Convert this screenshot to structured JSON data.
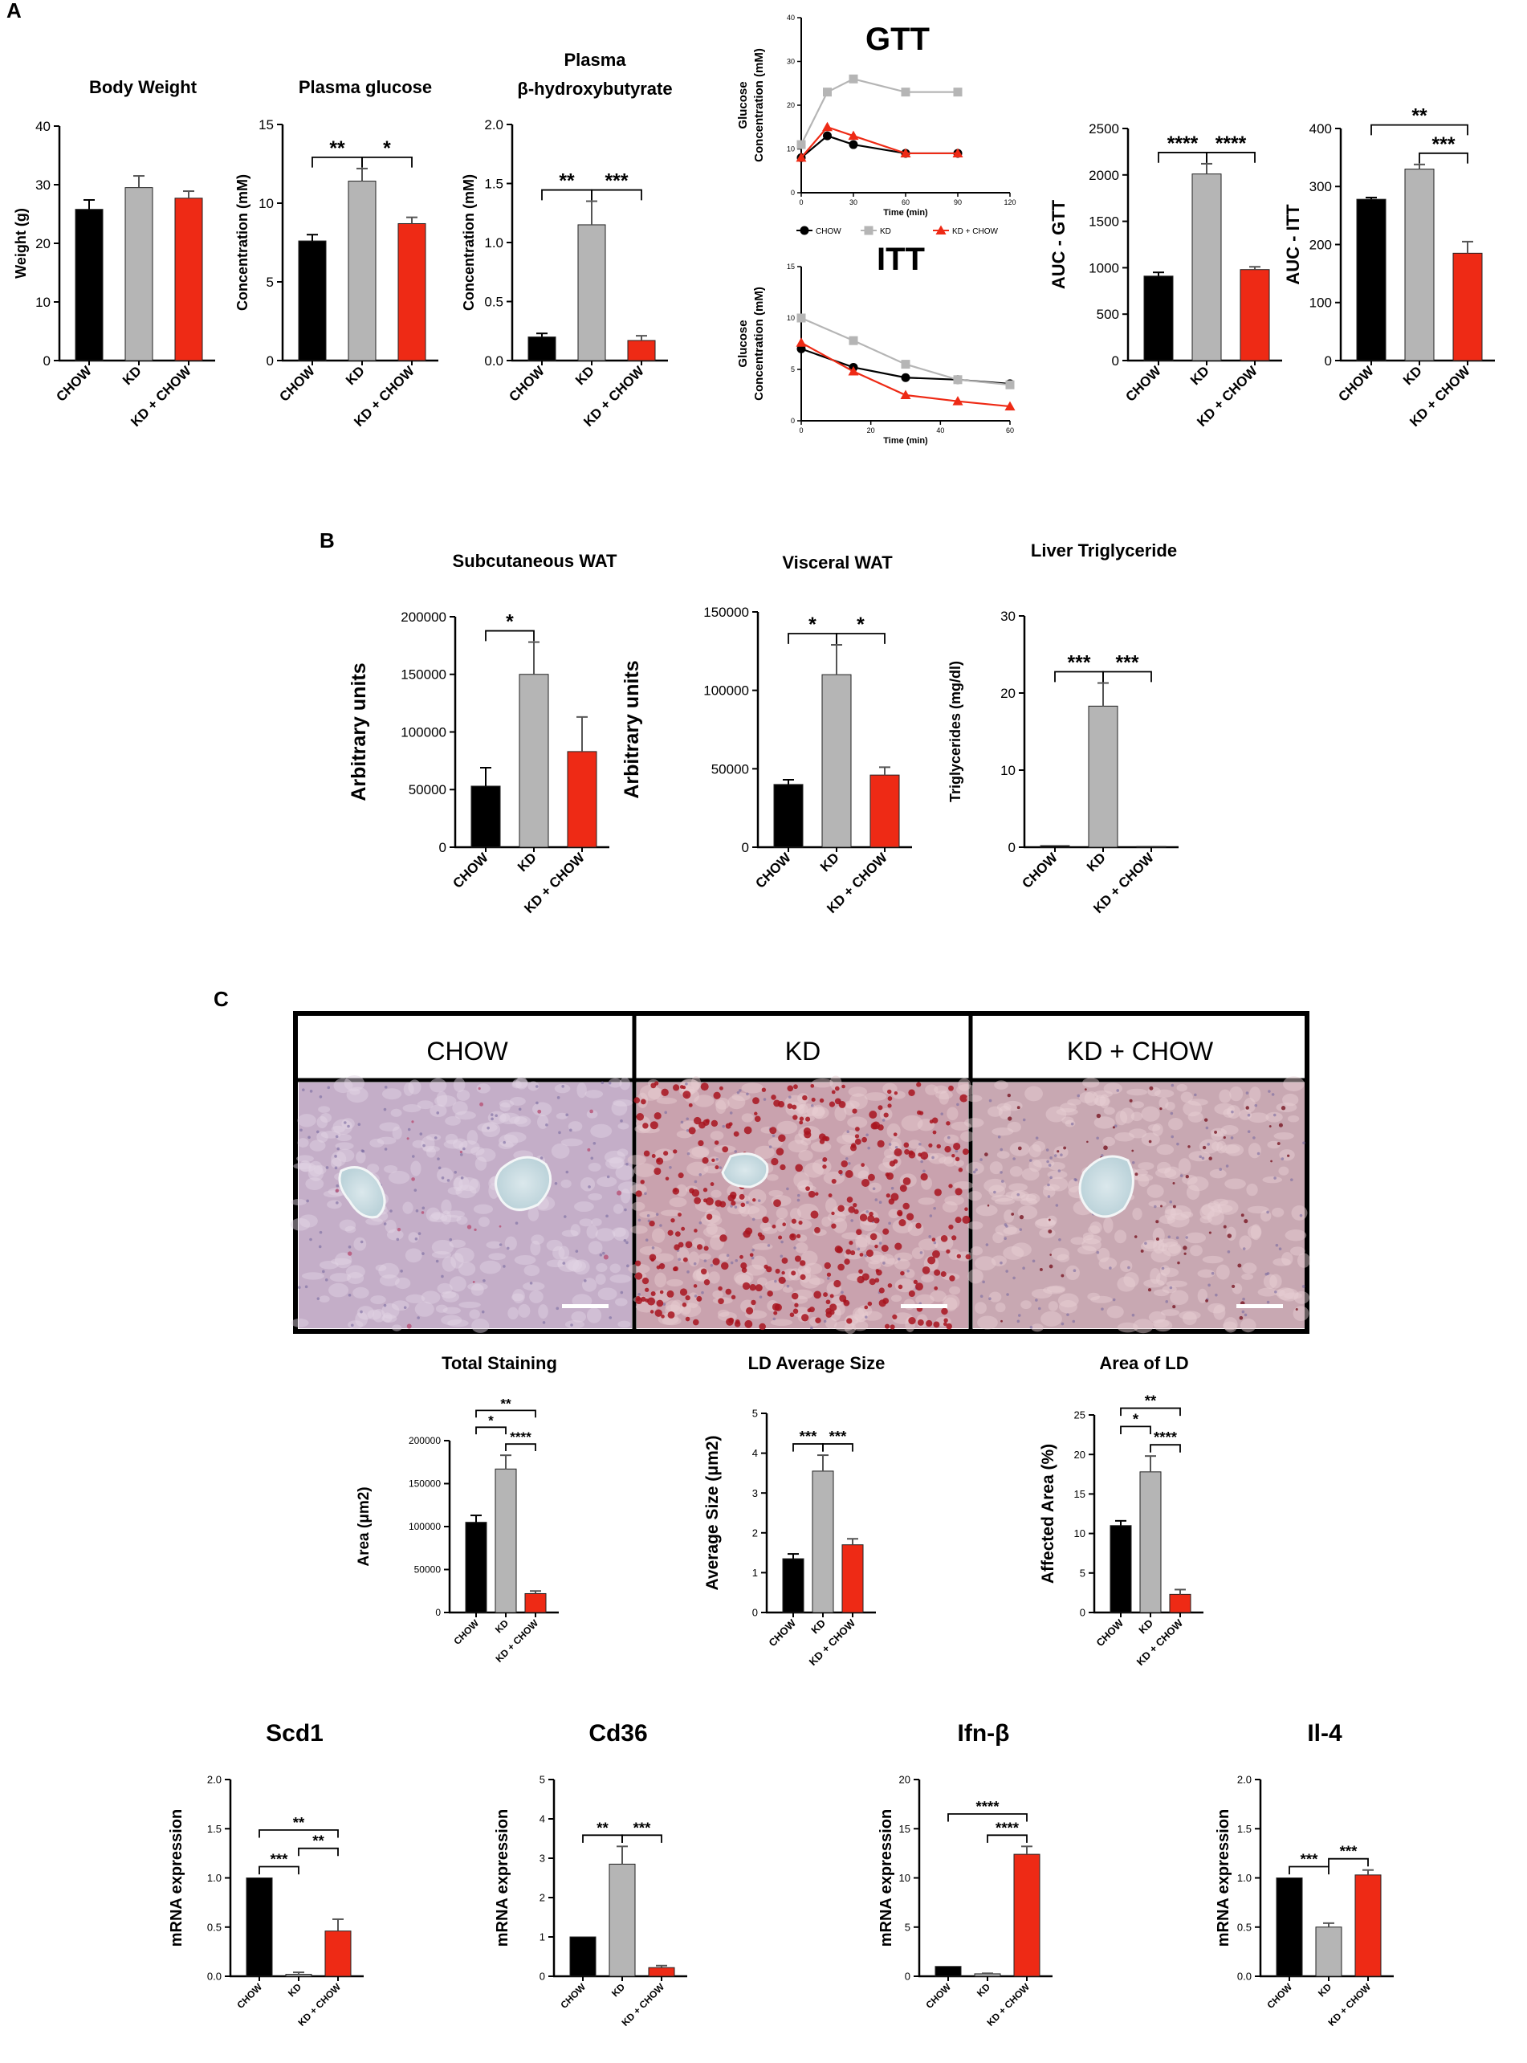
{
  "colors": {
    "chow": "#000000",
    "kd": "#b5b5b5",
    "kdchow": "#ee2a15",
    "axis": "#000000"
  },
  "panels": [
    {
      "id": "A",
      "label": "A"
    },
    {
      "id": "B",
      "label": "B"
    },
    {
      "id": "C",
      "label": "C"
    }
  ],
  "histology": {
    "labels": [
      "CHOW",
      "KD",
      "KD + CHOW"
    ]
  },
  "chart_data": [
    {
      "id": "body-weight",
      "type": "bar",
      "title": "Body Weight",
      "ylabel": "Weight (g)",
      "categories": [
        "CHOW",
        "KD",
        "KD + CHOW"
      ],
      "values": [
        25.8,
        29.5,
        27.7
      ],
      "errors": [
        1.6,
        2.0,
        1.2
      ],
      "ylim": [
        0,
        40
      ],
      "yticks": [
        "0",
        "10",
        "20",
        "30",
        "40"
      ],
      "sig": []
    },
    {
      "id": "plasma-glucose",
      "type": "bar",
      "title": "Plasma glucose",
      "ylabel": "Concentration (mM)",
      "categories": [
        "CHOW",
        "KD",
        "KD + CHOW"
      ],
      "values": [
        7.6,
        11.4,
        8.7
      ],
      "errors": [
        0.4,
        0.8,
        0.4
      ],
      "ylim": [
        0,
        15
      ],
      "yticks": [
        "0",
        "5",
        "10",
        "15"
      ],
      "sig": [
        {
          "from": 0,
          "to": 1,
          "label": "**"
        },
        {
          "from": 1,
          "to": 2,
          "label": "*"
        }
      ]
    },
    {
      "id": "plasma-bhb",
      "type": "bar",
      "title": "Plasma",
      "title2": "β-hydroxybutyrate",
      "ylabel": "Concentration (mM)",
      "categories": [
        "CHOW",
        "KD",
        "KD + CHOW"
      ],
      "values": [
        0.2,
        1.15,
        0.17
      ],
      "errors": [
        0.03,
        0.2,
        0.04
      ],
      "ylim": [
        0,
        2.0
      ],
      "yticks": [
        "0.0",
        "0.5",
        "1.0",
        "1.5",
        "2.0"
      ],
      "sig": [
        {
          "from": 0,
          "to": 1,
          "label": "**"
        },
        {
          "from": 1,
          "to": 2,
          "label": "***"
        }
      ]
    },
    {
      "id": "gtt",
      "type": "line",
      "title": "GTT",
      "ylabel": "Glucose",
      "ylabel2": "Concentration (mM)",
      "xlabel": "Time (min)",
      "x": [
        0,
        15,
        30,
        60,
        90
      ],
      "xlim": [
        0,
        120
      ],
      "xticks": [
        0,
        30,
        60,
        90,
        120
      ],
      "ylim": [
        0,
        40
      ],
      "yticks": [
        0,
        10,
        20,
        30,
        40
      ],
      "series": [
        {
          "name": "",
          "color": "chow",
          "marker": "circle",
          "values": [
            8,
            13,
            11,
            9,
            9
          ]
        },
        {
          "name": "",
          "color": "kd",
          "marker": "square",
          "values": [
            11,
            23,
            26,
            23,
            23
          ]
        },
        {
          "name": "",
          "color": "kdchow",
          "marker": "triangle",
          "values": [
            8,
            15,
            13,
            9,
            9
          ]
        }
      ]
    },
    {
      "id": "itt",
      "type": "line",
      "title": "ITT",
      "ylabel": "Glucose",
      "ylabel2": "Concentration (mM)",
      "xlabel": "Time (min)",
      "x": [
        0,
        15,
        30,
        45,
        60
      ],
      "xlim": [
        0,
        60
      ],
      "xticks": [
        0,
        20,
        40,
        60
      ],
      "ylim": [
        0,
        15
      ],
      "yticks": [
        0,
        5,
        10,
        15
      ],
      "legend": [
        "CHOW",
        "KD",
        "KD + CHOW"
      ],
      "series": [
        {
          "name": "CHOW",
          "color": "chow",
          "marker": "circle",
          "values": [
            7,
            5.2,
            4.2,
            4,
            3.6
          ]
        },
        {
          "name": "KD",
          "color": "kd",
          "marker": "square",
          "values": [
            10,
            7.8,
            5.5,
            4,
            3.5
          ]
        },
        {
          "name": "KD + CHOW",
          "color": "kdchow",
          "marker": "triangle",
          "values": [
            7.6,
            4.8,
            2.5,
            1.9,
            1.4
          ]
        }
      ]
    },
    {
      "id": "auc-gtt",
      "type": "bar",
      "title": "",
      "ylabel": "AUC - GTT",
      "categories": [
        "CHOW",
        "KD",
        "KD + CHOW"
      ],
      "values": [
        910,
        2010,
        980
      ],
      "errors": [
        40,
        110,
        30
      ],
      "ylim": [
        0,
        2500
      ],
      "yticks": [
        "0",
        "500",
        "1000",
        "1500",
        "2000",
        "2500"
      ],
      "sig": [
        {
          "from": 0,
          "to": 1,
          "label": "****"
        },
        {
          "from": 1,
          "to": 2,
          "label": "****"
        }
      ]
    },
    {
      "id": "auc-itt",
      "type": "bar",
      "title": "",
      "ylabel": "AUC - ITT",
      "categories": [
        "CHOW",
        "KD",
        "KD + CHOW"
      ],
      "values": [
        278,
        330,
        185
      ],
      "errors": [
        3,
        8,
        20
      ],
      "ylim": [
        0,
        400
      ],
      "yticks": [
        "0",
        "100",
        "200",
        "300",
        "400"
      ],
      "sig": [
        {
          "from": 0,
          "to": 2,
          "label": "**"
        },
        {
          "from": 1,
          "to": 2,
          "label": "***"
        }
      ]
    },
    {
      "id": "subcutaneous-wat",
      "type": "bar",
      "title": "Subcutaneous WAT",
      "ylabel": "Arbitrary units",
      "categories": [
        "CHOW",
        "KD",
        "KD + CHOW"
      ],
      "values": [
        53000,
        150000,
        83000
      ],
      "errors": [
        16000,
        28000,
        30000
      ],
      "ylim": [
        0,
        200000
      ],
      "yticks": [
        "0",
        "50000",
        "100000",
        "150000",
        "200000"
      ],
      "sig": [
        {
          "from": 0,
          "to": 1,
          "label": "*"
        }
      ]
    },
    {
      "id": "visceral-wat",
      "type": "bar",
      "title": "Visceral WAT",
      "ylabel": "Arbitrary units",
      "categories": [
        "CHOW",
        "KD",
        "KD + CHOW"
      ],
      "values": [
        40000,
        110000,
        46000
      ],
      "errors": [
        3000,
        19000,
        5000
      ],
      "ylim": [
        0,
        150000
      ],
      "yticks": [
        "0",
        "50000",
        "100000",
        "150000"
      ],
      "sig": [
        {
          "from": 0,
          "to": 1,
          "label": "*"
        },
        {
          "from": 1,
          "to": 2,
          "label": "*"
        }
      ]
    },
    {
      "id": "liver-triglyceride",
      "type": "bar",
      "title": "Liver Triglyceride",
      "ylabel": "Triglycerides (mg/dl)",
      "categories": [
        "CHOW",
        "KD",
        "KD + CHOW"
      ],
      "values": [
        0.2,
        18.3,
        0.1
      ],
      "errors": [
        0,
        3.0,
        0
      ],
      "ylim": [
        0,
        30
      ],
      "yticks": [
        "0",
        "10",
        "20",
        "30"
      ],
      "sig": [
        {
          "from": 0,
          "to": 1,
          "label": "***"
        },
        {
          "from": 1,
          "to": 2,
          "label": "***"
        }
      ]
    },
    {
      "id": "total-staining",
      "type": "bar",
      "title": "Total Staining",
      "ylabel": "Area (μm2)",
      "categories": [
        "CHOW",
        "KD",
        "KD + CHOW"
      ],
      "values": [
        105000,
        167000,
        22000
      ],
      "errors": [
        8000,
        16000,
        3000
      ],
      "ylim": [
        0,
        200000
      ],
      "yticks": [
        "0",
        "50000",
        "100000",
        "150000",
        "200000"
      ],
      "sig": [
        {
          "from": 0,
          "to": 2,
          "label": "**"
        },
        {
          "from": 0,
          "to": 1,
          "label": "*"
        },
        {
          "from": 1,
          "to": 2,
          "label": "****"
        }
      ]
    },
    {
      "id": "ld-average-size",
      "type": "bar",
      "title": "LD Average Size",
      "ylabel": "Average Size (μm2)",
      "categories": [
        "CHOW",
        "KD",
        "KD + CHOW"
      ],
      "values": [
        1.35,
        3.55,
        1.7
      ],
      "errors": [
        0.12,
        0.4,
        0.15
      ],
      "ylim": [
        0,
        5
      ],
      "yticks": [
        "0",
        "1",
        "2",
        "3",
        "4",
        "5"
      ],
      "sig": [
        {
          "from": 0,
          "to": 1,
          "label": "***"
        },
        {
          "from": 1,
          "to": 2,
          "label": "***"
        }
      ]
    },
    {
      "id": "area-of-ld",
      "type": "bar",
      "title": "Area of LD",
      "ylabel": "Affected Area (%)",
      "categories": [
        "CHOW",
        "KD",
        "KD + CHOW"
      ],
      "values": [
        11,
        17.8,
        2.3
      ],
      "errors": [
        0.6,
        2.0,
        0.6
      ],
      "ylim": [
        0,
        25
      ],
      "yticks": [
        "0",
        "5",
        "10",
        "15",
        "20",
        "25"
      ],
      "sig": [
        {
          "from": 0,
          "to": 2,
          "label": "**"
        },
        {
          "from": 0,
          "to": 1,
          "label": "*"
        },
        {
          "from": 1,
          "to": 2,
          "label": "****"
        }
      ]
    },
    {
      "id": "scd1",
      "type": "bar",
      "title": "Scd1",
      "ylabel": "mRNA expression",
      "categories": [
        "CHOW",
        "KD",
        "KD + CHOW"
      ],
      "values": [
        1.0,
        0.02,
        0.46
      ],
      "errors": [
        0,
        0.02,
        0.12
      ],
      "ylim": [
        0,
        2.0
      ],
      "yticks": [
        "0.0",
        "0.5",
        "1.0",
        "1.5",
        "2.0"
      ],
      "sig": [
        {
          "from": 0,
          "to": 2,
          "label": "**"
        },
        {
          "from": 1,
          "to": 2,
          "label": "**"
        },
        {
          "from": 0,
          "to": 1,
          "label": "***"
        }
      ]
    },
    {
      "id": "cd36",
      "type": "bar",
      "title": "Cd36",
      "ylabel": "mRNA expression",
      "categories": [
        "CHOW",
        "KD",
        "KD + CHOW"
      ],
      "values": [
        1.0,
        2.85,
        0.22
      ],
      "errors": [
        0,
        0.45,
        0.05
      ],
      "ylim": [
        0,
        5
      ],
      "yticks": [
        "0",
        "1",
        "2",
        "3",
        "4",
        "5"
      ],
      "sig": [
        {
          "from": 0,
          "to": 1,
          "label": "**"
        },
        {
          "from": 1,
          "to": 2,
          "label": "***"
        }
      ]
    },
    {
      "id": "ifn-b",
      "type": "bar",
      "title": "Ifn-β",
      "ylabel": "mRNA expression",
      "categories": [
        "CHOW",
        "KD",
        "KD + CHOW"
      ],
      "values": [
        1.0,
        0.25,
        12.4
      ],
      "errors": [
        0,
        0.05,
        0.8
      ],
      "ylim": [
        0,
        20
      ],
      "yticks": [
        "0",
        "5",
        "10",
        "15",
        "20"
      ],
      "sig": [
        {
          "from": 0,
          "to": 2,
          "label": "****"
        },
        {
          "from": 1,
          "to": 2,
          "label": "****"
        }
      ]
    },
    {
      "id": "il-4",
      "type": "bar",
      "title": "Il-4",
      "ylabel": "mRNA expression",
      "categories": [
        "CHOW",
        "KD",
        "KD + CHOW"
      ],
      "values": [
        1.0,
        0.5,
        1.03
      ],
      "errors": [
        0,
        0.04,
        0.05
      ],
      "ylim": [
        0,
        2.0
      ],
      "yticks": [
        "0.0",
        "0.5",
        "1.0",
        "1.5",
        "2.0"
      ],
      "sig": [
        {
          "from": 0,
          "to": 1,
          "label": "***"
        },
        {
          "from": 1,
          "to": 2,
          "label": "***"
        }
      ]
    }
  ]
}
